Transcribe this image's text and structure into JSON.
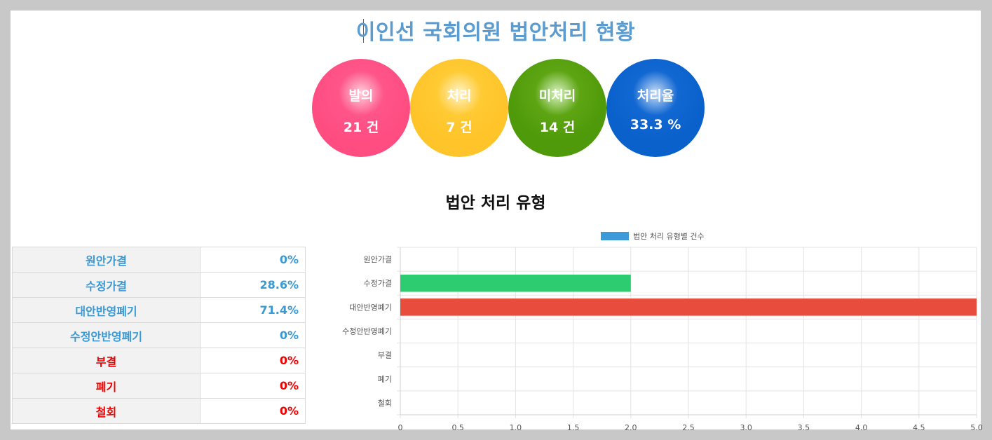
{
  "title": "이인선 국회의원 법안처리 현황",
  "stats": [
    {
      "label": "발의",
      "value": "21 건"
    },
    {
      "label": "처리",
      "value": "7 건"
    },
    {
      "label": "미처리",
      "value": "14 건"
    },
    {
      "label": "처리율",
      "value": "33.3 %"
    }
  ],
  "section_title": "법안 처리 유형",
  "types_table": [
    {
      "name": "원안가결",
      "pct": "0%"
    },
    {
      "name": "수정가결",
      "pct": "28.6%"
    },
    {
      "name": "대안반영폐기",
      "pct": "71.4%"
    },
    {
      "name": "수정안반영폐기",
      "pct": "0%"
    },
    {
      "name": "부결",
      "pct": "0%"
    },
    {
      "name": "폐기",
      "pct": "0%"
    },
    {
      "name": "철회",
      "pct": "0%"
    }
  ],
  "chart_data": {
    "type": "bar",
    "orientation": "horizontal",
    "categories": [
      "원안가결",
      "수정가결",
      "대안반영폐기",
      "수정안반영폐기",
      "부결",
      "폐기",
      "철회"
    ],
    "series": [
      {
        "name": "법안 처리 유형별 건수",
        "values": [
          0,
          2,
          5,
          0,
          0,
          0,
          0
        ]
      }
    ],
    "bar_colors": [
      "#3d9ad8",
      "#2ecc71",
      "#e74c3c",
      "#3d9ad8",
      "#3d9ad8",
      "#3d9ad8",
      "#3d9ad8"
    ],
    "legend_color": "#3d9ad8",
    "xlim": [
      0,
      5
    ],
    "xticks": [
      "0",
      "0.5",
      "1.0",
      "1.5",
      "2.0",
      "2.5",
      "3.0",
      "3.5",
      "4.0",
      "4.5",
      "5.0"
    ],
    "grid": true,
    "legend": "top"
  }
}
